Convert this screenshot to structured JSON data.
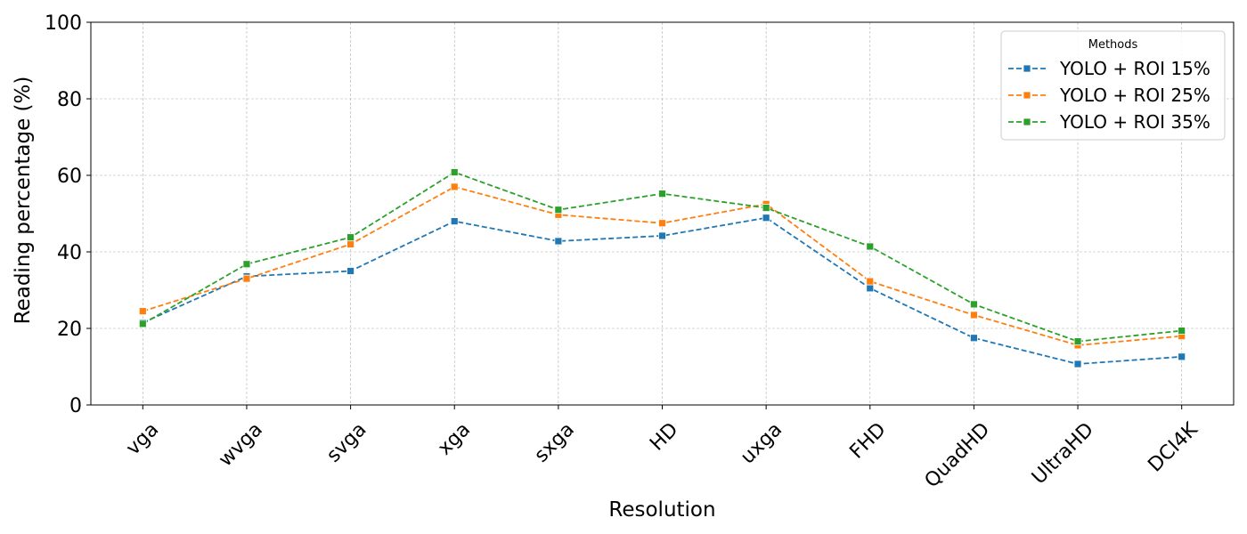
{
  "chart_data": {
    "type": "line",
    "title": "",
    "xlabel": "Resolution",
    "ylabel": "Reading percentage (%)",
    "ylim": [
      0,
      100
    ],
    "yticks": [
      0,
      20,
      40,
      60,
      80,
      100
    ],
    "grid": true,
    "legend_title": "Methods",
    "legend_position": "top-right",
    "categories": [
      "vga",
      "wvga",
      "svga",
      "xga",
      "sxga",
      "HD",
      "uxga",
      "FHD",
      "QuadHD",
      "UltraHD",
      "DCI4K"
    ],
    "series": [
      {
        "name": "YOLO + ROI 15%",
        "color": "#1f77b4",
        "marker": "square",
        "line_style": "dashed",
        "values": [
          21.5,
          33.6,
          35.0,
          48.0,
          42.8,
          44.2,
          48.9,
          30.5,
          17.5,
          10.7,
          12.6
        ]
      },
      {
        "name": "YOLO + ROI 25%",
        "color": "#ff7f0e",
        "marker": "square",
        "line_style": "dashed",
        "values": [
          24.5,
          33.0,
          42.0,
          57.0,
          49.7,
          47.5,
          52.5,
          32.3,
          23.5,
          15.6,
          18.0
        ]
      },
      {
        "name": "YOLO + ROI 35%",
        "color": "#2ca02c",
        "marker": "square",
        "line_style": "dashed",
        "values": [
          21.2,
          36.8,
          43.8,
          60.8,
          51.0,
          55.2,
          51.5,
          41.4,
          26.3,
          16.6,
          19.4
        ]
      }
    ]
  }
}
